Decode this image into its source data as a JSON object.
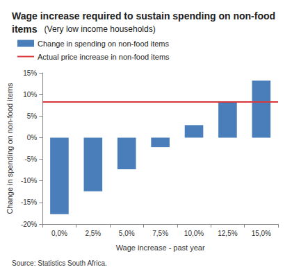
{
  "chart_data": {
    "type": "bar",
    "title": "Wage increase required to sustain spending on non-food items",
    "subtitle": "(Very low income households)",
    "x_label": "Wage increase - past year",
    "y_label": "Change in spending on non-food items",
    "source": "Source: Statistics South Africa.",
    "categories": [
      "0,0%",
      "2,5%",
      "5,0%",
      "7,5%",
      "10,0%",
      "12,5%",
      "15,0%"
    ],
    "series": [
      {
        "name": "Change in spending on non-food items",
        "type": "bar",
        "color": "#4a7ebb",
        "values": [
          -17.7,
          -12.4,
          -7.3,
          -2.2,
          2.9,
          8.1,
          13.2
        ]
      }
    ],
    "reference_line": {
      "name": "Actual price increase in non-food items",
      "color": "#d9383a",
      "value": 8.3
    },
    "ylim": [
      -20,
      15
    ],
    "yticks": [
      {
        "value": -20,
        "label": "-20%"
      },
      {
        "value": -15,
        "label": "-15%"
      },
      {
        "value": -10,
        "label": "-10%"
      },
      {
        "value": -5,
        "label": "-5%"
      },
      {
        "value": 0,
        "label": "0%"
      },
      {
        "value": 5,
        "label": "5%"
      },
      {
        "value": 10,
        "label": "10%"
      },
      {
        "value": 15,
        "label": "15%"
      }
    ],
    "grid": false,
    "legend": "top-left",
    "data_labels": false
  }
}
